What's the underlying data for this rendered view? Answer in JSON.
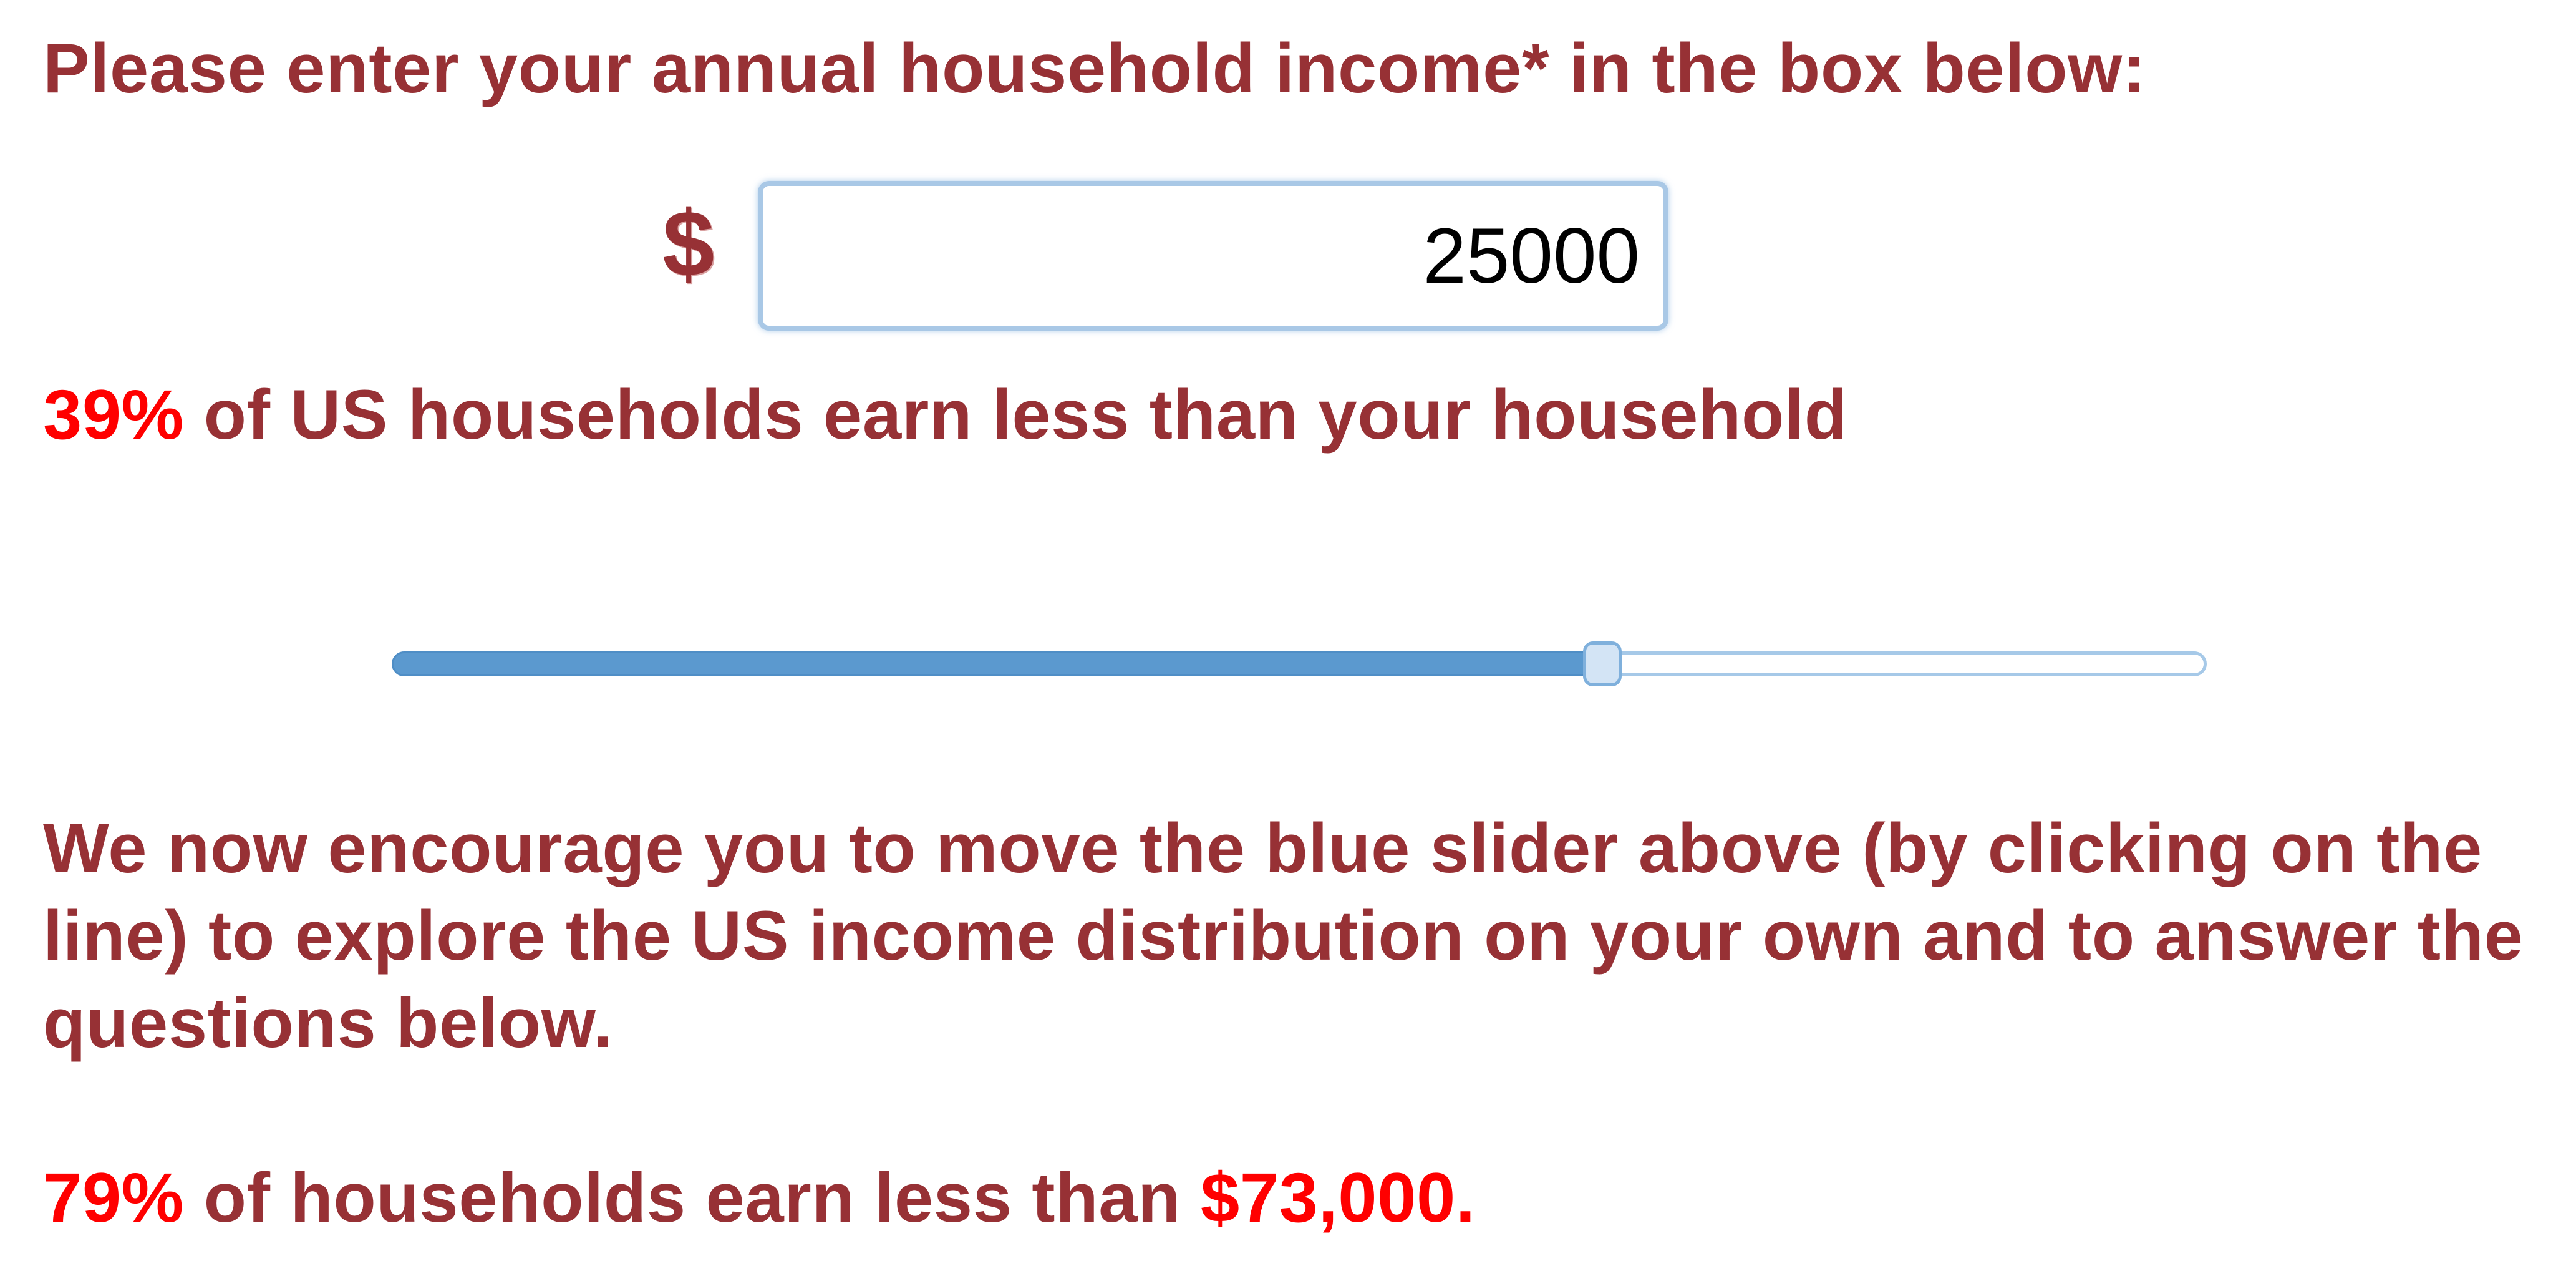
{
  "prompt": {
    "text": "Please enter your annual household income* in the box below:"
  },
  "income_input": {
    "currency_symbol": "$",
    "value": "25000"
  },
  "percentile": {
    "percent": "39%",
    "text": " of US households earn less than your household"
  },
  "slider": {
    "position_fraction": 0.667,
    "fill_color": "#5b99cf",
    "track_border_color": "#a6c9e8"
  },
  "instructions": {
    "text": "We now encourage you to move the blue slider above (by clicking on the line) to explore the US income distribution on your own and to answer the questions below."
  },
  "result": {
    "percent": "79%",
    "text": " of households earn less than ",
    "amount": "$73,000."
  },
  "colors": {
    "text": "#973135",
    "highlight": "#ff0000"
  }
}
